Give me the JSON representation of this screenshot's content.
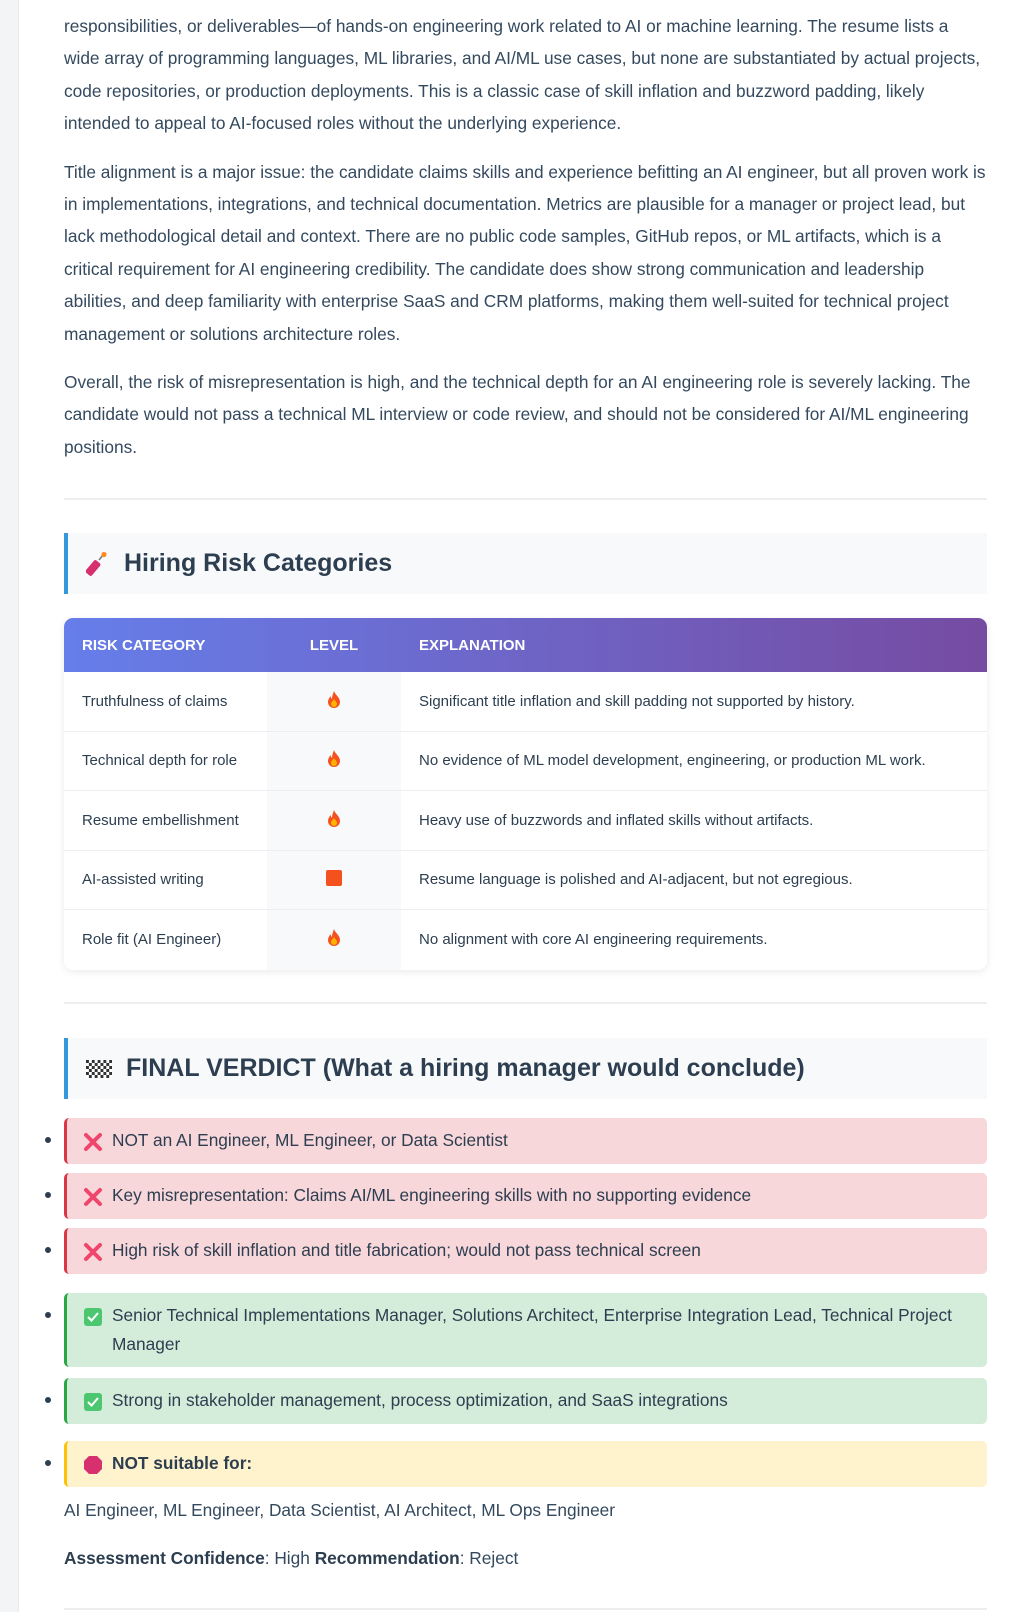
{
  "paragraphs": [
    "responsibilities, or deliverables—of hands-on engineering work related to AI or machine learning. The resume lists a wide array of programming languages, ML libraries, and AI/ML use cases, but none are substantiated by actual projects, code repositories, or production deployments. This is a classic case of skill inflation and buzzword padding, likely intended to appeal to AI-focused roles without the underlying experience.",
    "Title alignment is a major issue: the candidate claims skills and experience befitting an AI engineer, but all proven work is in implementations, integrations, and technical documentation. Metrics are plausible for a manager or project lead, but lack methodological detail and context. There are no public code samples, GitHub repos, or ML artifacts, which is a critical requirement for AI engineering credibility. The candidate does show strong communication and leadership abilities, and deep familiarity with enterprise SaaS and CRM platforms, making them well-suited for technical project management or solutions architecture roles.",
    "Overall, the risk of misrepresentation is high, and the technical depth for an AI engineering role is severely lacking. The candidate would not pass a technical ML interview or code review, and should not be considered for AI/ML engineering positions."
  ],
  "risk_section": {
    "title": "Hiring Risk Categories",
    "icon": "firecracker-icon",
    "headers": [
      "RISK CATEGORY",
      "LEVEL",
      "EXPLANATION"
    ],
    "rows": [
      {
        "category": "Truthfulness of claims",
        "level": "fire",
        "explanation": "Significant title inflation and skill padding not supported by history."
      },
      {
        "category": "Technical depth for role",
        "level": "fire",
        "explanation": "No evidence of ML model development, engineering, or production ML work."
      },
      {
        "category": "Resume embellishment",
        "level": "fire",
        "explanation": "Heavy use of buzzwords and inflated skills without artifacts."
      },
      {
        "category": "AI-assisted writing",
        "level": "orange-square",
        "explanation": "Resume language is polished and AI-adjacent, but not egregious."
      },
      {
        "category": "Role fit (AI Engineer)",
        "level": "fire",
        "explanation": "No alignment with core AI engineering requirements."
      }
    ]
  },
  "verdict": {
    "title": "FINAL VERDICT (What a hiring manager would conclude)",
    "icon": "checkered-flag-icon",
    "negatives": [
      "NOT an AI Engineer, ML Engineer, or Data Scientist",
      "Key misrepresentation: Claims AI/ML engineering skills with no supporting evidence",
      "High risk of skill inflation and title fabrication; would not pass technical screen"
    ],
    "positives": [
      "Senior Technical Implementations Manager, Solutions Architect, Enterprise Integration Lead, Technical Project Manager",
      "Strong in stakeholder management, process optimization, and SaaS integrations"
    ],
    "not_suitable_label": "NOT suitable for:",
    "not_suitable_roles": "AI Engineer, ML Engineer, Data Scientist, AI Architect, ML Ops Engineer",
    "confidence_label": "Assessment Confidence",
    "confidence_value": ": High",
    "recommendation_label": "Recommendation",
    "recommendation_value": ": Reject"
  },
  "colors": {
    "accent": "#3498db",
    "table_gradient_start": "#667eea",
    "table_gradient_end": "#764ba2",
    "negative": "#dc3545",
    "positive": "#28a745",
    "warning": "#ffc107"
  }
}
